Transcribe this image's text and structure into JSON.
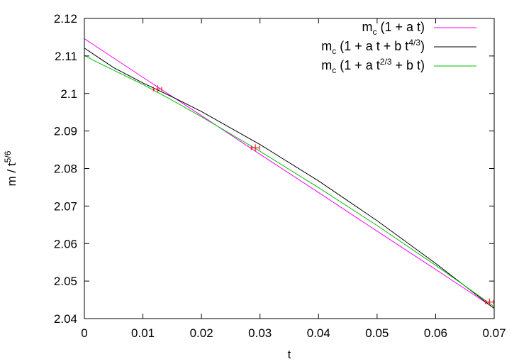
{
  "chart_data": {
    "type": "line",
    "xlabel": "t",
    "ylabel": "m / t",
    "ylabel_sup": "5/6",
    "xlim": [
      0,
      0.07
    ],
    "ylim": [
      2.04,
      2.12
    ],
    "grid": false,
    "legend_position": "top-right",
    "x_ticks": [
      {
        "value": 0,
        "label": "0"
      },
      {
        "value": 0.01,
        "label": "0.01"
      },
      {
        "value": 0.02,
        "label": "0.02"
      },
      {
        "value": 0.03,
        "label": "0.03"
      },
      {
        "value": 0.04,
        "label": "0.04"
      },
      {
        "value": 0.05,
        "label": "0.05"
      },
      {
        "value": 0.06,
        "label": "0.06"
      },
      {
        "value": 0.07,
        "label": "0.07"
      }
    ],
    "y_ticks": [
      {
        "value": 2.04,
        "label": "2.04"
      },
      {
        "value": 2.05,
        "label": "2.05"
      },
      {
        "value": 2.06,
        "label": "2.06"
      },
      {
        "value": 2.07,
        "label": "2.07"
      },
      {
        "value": 2.08,
        "label": "2.08"
      },
      {
        "value": 2.09,
        "label": "2.09"
      },
      {
        "value": 2.1,
        "label": "2.1"
      },
      {
        "value": 2.11,
        "label": "2.11"
      },
      {
        "value": 2.12,
        "label": "2.12"
      }
    ],
    "points": {
      "color": "#e8202a",
      "x": [
        0.0125,
        0.0292,
        0.0692
      ],
      "y": [
        2.1012,
        2.0855,
        2.0444
      ],
      "x_err": [
        0.0007,
        0.0007,
        0.0007
      ]
    },
    "series": [
      {
        "name_main": "m",
        "name_sub": "c",
        "name_parts": [
          {
            "t": " (1 + a t)"
          }
        ],
        "color": "#ff00ff",
        "x": [
          0,
          0.01,
          0.02,
          0.03,
          0.04,
          0.05,
          0.06,
          0.07
        ],
        "y": [
          2.1146,
          2.1043,
          2.0941,
          2.0838,
          2.0736,
          2.0633,
          2.0531,
          2.0428
        ]
      },
      {
        "name_main": "m",
        "name_sub": "c",
        "name_parts": [
          {
            "t": " (1 + a t + b t"
          },
          {
            "sup": "4/3"
          },
          {
            "t": ")"
          }
        ],
        "color": "#000000",
        "x": [
          0,
          0.005,
          0.01,
          0.015,
          0.02,
          0.03,
          0.04,
          0.05,
          0.06,
          0.07
        ],
        "y": [
          2.1121,
          2.1069,
          2.1028,
          2.0991,
          2.0952,
          2.0864,
          2.0767,
          2.0661,
          2.0547,
          2.0427
        ]
      },
      {
        "name_main": "m",
        "name_sub": "c",
        "name_parts": [
          {
            "t": " (1 + a t"
          },
          {
            "sup": "2/3"
          },
          {
            "t": " + b t)"
          }
        ],
        "color": "#00c000",
        "x": [
          0,
          0.001,
          0.0025,
          0.005,
          0.0075,
          0.01,
          0.015,
          0.02,
          0.03,
          0.04,
          0.05,
          0.06,
          0.07
        ],
        "y": [
          2.1102,
          2.1093,
          2.1081,
          2.1062,
          2.1043,
          2.1024,
          2.0982,
          2.0938,
          2.0846,
          2.0749,
          2.0648,
          2.0542,
          2.0432
        ]
      }
    ]
  }
}
